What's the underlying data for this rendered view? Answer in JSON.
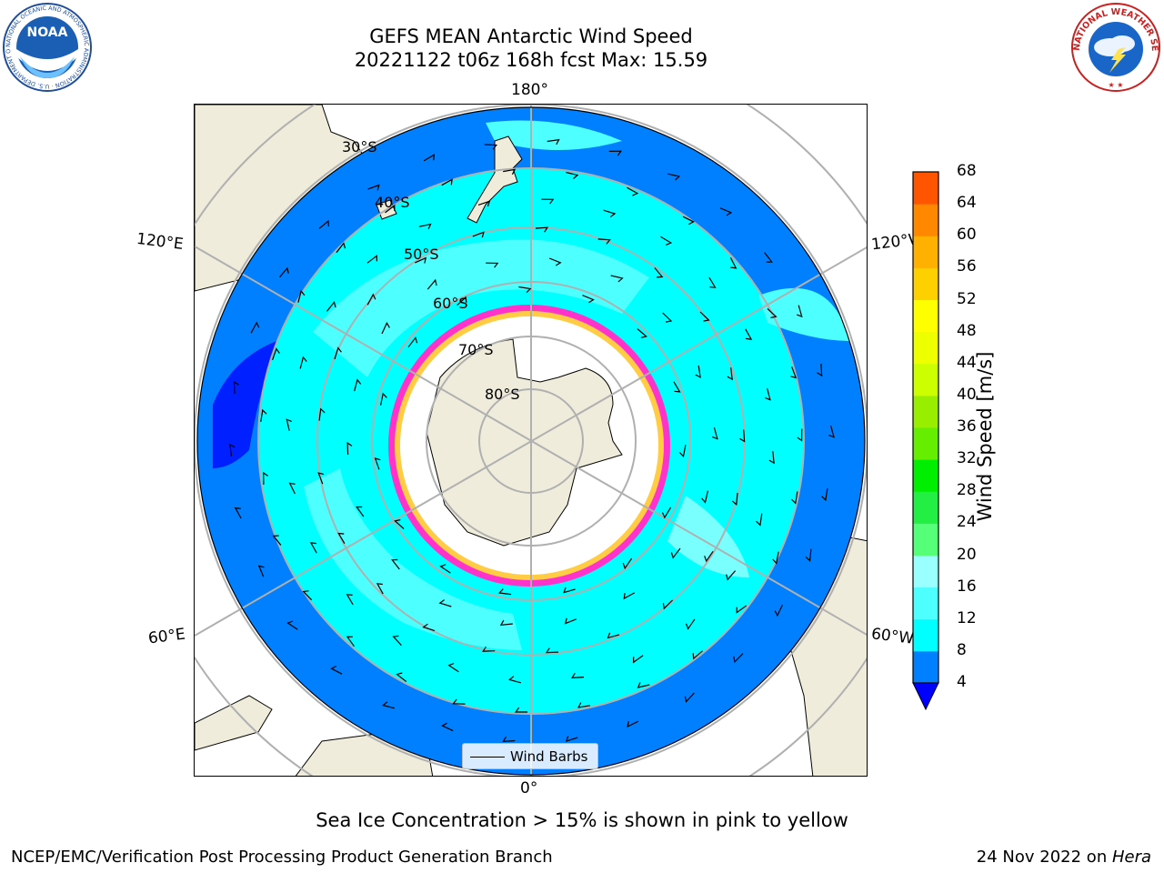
{
  "title_line1": "GEFS MEAN Antarctic Wind Speed",
  "title_line2": "20221122 t06z 168h fcst   Max: 15.59",
  "longitude_labels": {
    "top": "180°",
    "bottom": "0°",
    "left_upper": "120°E",
    "left_lower": "60°E",
    "right_upper": "120°W",
    "right_lower": "60°W"
  },
  "latitude_labels": [
    "30°S",
    "40°S",
    "50°S",
    "60°S",
    "70°S",
    "80°S"
  ],
  "colorbar": {
    "label": "Wind Speed [m/s]",
    "ticks": [
      "68",
      "64",
      "60",
      "56",
      "52",
      "48",
      "44",
      "40",
      "36",
      "32",
      "28",
      "24",
      "20",
      "16",
      "12",
      "8",
      "4"
    ],
    "colors": [
      "#0080ff",
      "#00ffff",
      "#4dffff",
      "#99ffff",
      "#55ff77",
      "#22ee44",
      "#00ee00",
      "#66ee00",
      "#99ee00",
      "#ccff00",
      "#eeff00",
      "#ffff00",
      "#ffd000",
      "#ffb000",
      "#ff8800",
      "#ff5500",
      "#ff2200",
      "#ff0000"
    ],
    "under_color": "#0000ff"
  },
  "legend_label": "Wind Barbs",
  "sea_ice_note": "Sea Ice Concentration > 15% is shown in pink to yellow",
  "footer_left": "NCEP/EMC/Verification Post Processing Product Generation Branch",
  "footer_date": "24 Nov 2022 on ",
  "footer_host": "Hera",
  "logos": {
    "noaa_text": "NOAA",
    "noaa_ring": "NATIONAL OCEANIC AND ATMOSPHERIC ADMINISTRATION · U.S. DEPARTMENT OF COMMERCE",
    "nws_ring": "NATIONAL WEATHER SERVICE"
  }
}
